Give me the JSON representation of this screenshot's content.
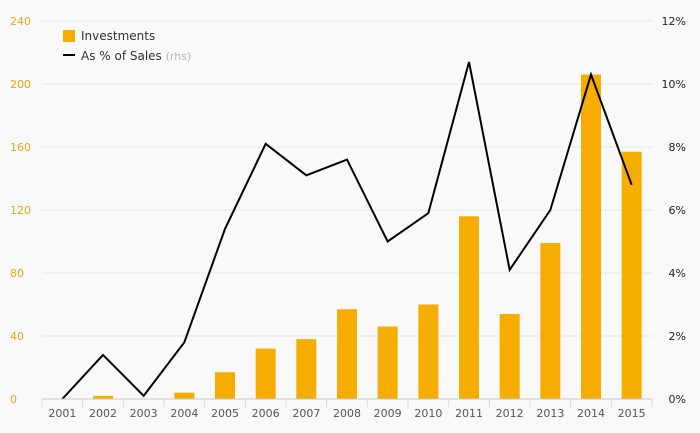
{
  "chart_data": {
    "type": "bar",
    "categories": [
      "2001",
      "2002",
      "2003",
      "2004",
      "2005",
      "2006",
      "2007",
      "2008",
      "2009",
      "2010",
      "2011",
      "2012",
      "2013",
      "2014",
      "2015"
    ],
    "series": [
      {
        "name": "Investments",
        "type": "bar",
        "axis": "left",
        "color": "#f7ad00",
        "values": [
          0,
          2,
          0,
          4,
          17,
          32,
          38,
          57,
          46,
          60,
          116,
          54,
          99,
          206,
          157
        ]
      },
      {
        "name": "As % of Sales",
        "type": "line",
        "axis": "right",
        "color": "#000000",
        "values": [
          0.0,
          1.4,
          0.1,
          1.8,
          5.4,
          8.1,
          7.1,
          7.6,
          5.0,
          5.9,
          10.7,
          4.1,
          6.0,
          10.3,
          6.8
        ]
      }
    ],
    "y_left": {
      "ticks": [
        "0",
        "40",
        "80",
        "120",
        "160",
        "200",
        "240"
      ],
      "ylim": [
        0,
        240
      ],
      "color": "#e8a317"
    },
    "y_right": {
      "ticks": [
        "0%",
        "2%",
        "4%",
        "6%",
        "8%",
        "10%",
        "12%"
      ],
      "ylim": [
        0,
        12
      ],
      "color": "#222222"
    },
    "legend": {
      "placement": "top-left",
      "items": [
        {
          "label": "Investments",
          "suffix": ""
        },
        {
          "label": "As % of Sales",
          "suffix": "(rhs)"
        }
      ]
    },
    "grid": true
  }
}
